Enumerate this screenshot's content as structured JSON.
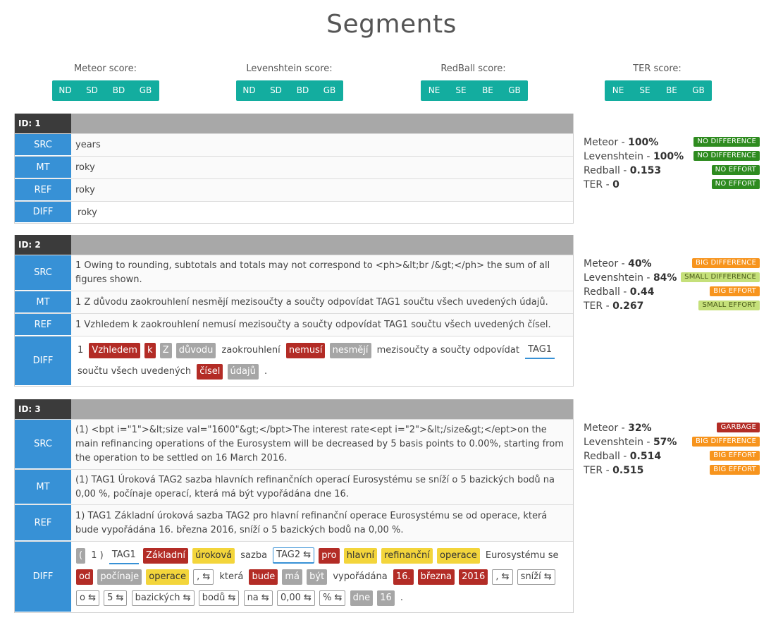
{
  "page": {
    "title": "Segments"
  },
  "filters": [
    {
      "label": "Meteor score:",
      "buttons": [
        "ND",
        "SD",
        "BD",
        "GB"
      ]
    },
    {
      "label": "Levenshtein score:",
      "buttons": [
        "ND",
        "SD",
        "BD",
        "GB"
      ]
    },
    {
      "label": "RedBall score:",
      "buttons": [
        "NE",
        "SE",
        "BE",
        "GB"
      ]
    },
    {
      "label": "TER score:",
      "buttons": [
        "NE",
        "SE",
        "BE",
        "GB"
      ]
    }
  ],
  "row_labels": {
    "src": "SRC",
    "mt": "MT",
    "ref": "REF",
    "diff": "DIFF"
  },
  "segments": [
    {
      "id": "ID: 1",
      "src": "years",
      "mt": "roky",
      "ref": "roky",
      "diff": [
        {
          "t": "roky",
          "k": "plain"
        }
      ],
      "scores": [
        {
          "name": "Meteor - ",
          "value": "100%",
          "badge": "NO DIFFERENCE",
          "color": "#2e8b1f"
        },
        {
          "name": "Levenshtein - ",
          "value": "100%",
          "badge": "NO DIFFERENCE",
          "color": "#2e8b1f"
        },
        {
          "name": "Redball - ",
          "value": "0.153",
          "badge": "NO EFFORT",
          "color": "#2e8b1f"
        },
        {
          "name": "TER - ",
          "value": "0",
          "badge": "NO EFFORT",
          "color": "#2e8b1f"
        }
      ]
    },
    {
      "id": "ID: 2",
      "src": "1 Owing to rounding, subtotals and totals may not correspond to <ph>&lt;br /&gt;</ph> the sum of all figures shown.",
      "mt": "1 Z důvodu zaokrouhlení nesmějí mezisoučty a součty odpovídat TAG1 součtu všech uvedených údajů.",
      "ref": "1 Vzhledem k zaokrouhlení nemusí mezisoučty a součty odpovídat TAG1 součtu všech uvedených čísel.",
      "diff": [
        {
          "t": "1",
          "k": "plain"
        },
        {
          "t": "Vzhledem",
          "k": "red"
        },
        {
          "t": "k",
          "k": "red"
        },
        {
          "t": "Z",
          "k": "grey"
        },
        {
          "t": "důvodu",
          "k": "grey"
        },
        {
          "t": "zaokrouhlení",
          "k": "plain"
        },
        {
          "t": "nemusí",
          "k": "red"
        },
        {
          "t": "nesmějí",
          "k": "grey"
        },
        {
          "t": "mezisoučty a součty odpovídat",
          "k": "plain"
        },
        {
          "t": "TAG1",
          "k": "under"
        },
        {
          "t": "součtu všech uvedených",
          "k": "plain"
        },
        {
          "t": "čísel",
          "k": "red"
        },
        {
          "t": "údajů",
          "k": "grey"
        },
        {
          "t": ".",
          "k": "plain"
        }
      ],
      "scores": [
        {
          "name": "Meteor - ",
          "value": "40%",
          "badge": "BIG DIFFERENCE",
          "color": "#f7941d"
        },
        {
          "name": "Levenshtein - ",
          "value": "84%",
          "badge": "SMALL DIFFERENCE",
          "color": "#c5e07a"
        },
        {
          "name": "Redball - ",
          "value": "0.44",
          "badge": "BIG EFFORT",
          "color": "#f7941d"
        },
        {
          "name": "TER - ",
          "value": "0.267",
          "badge": "SMALL EFFORT",
          "color": "#c5e07a"
        }
      ]
    },
    {
      "id": "ID: 3",
      "src": "(1) <bpt i=\"1\">&lt;size val=\"1600\"&gt;</bpt>The interest rate<ept i=\"2\">&lt;/size&gt;</ept>on the main refinancing operations of the Eurosystem will be decreased by 5 basis points to 0.00%, starting from the operation to be settled on 16 March 2016.",
      "mt": "(1) TAG1 Úroková TAG2 sazba hlavních refinančních operací Eurosystému se sníží o 5 bazických bodů na 0,00 %, počínaje operací, která má být vypořádána dne 16.",
      "ref": "1) TAG1 Základní úroková sazba TAG2 pro hlavní refinanční operace Eurosystému se od operace, která bude vypořádána 16. března 2016, sníží o 5 bazických bodů na 0,00 %.",
      "diff": [
        {
          "t": "(",
          "k": "grey"
        },
        {
          "t": "1 )",
          "k": "plain"
        },
        {
          "t": "TAG1",
          "k": "under"
        },
        {
          "t": "Základní",
          "k": "red"
        },
        {
          "t": "úroková",
          "k": "yellow"
        },
        {
          "t": "sazba",
          "k": "plain"
        },
        {
          "t": "TAG2 ⇆",
          "k": "boxblue"
        },
        {
          "t": "pro",
          "k": "red"
        },
        {
          "t": "hlavní",
          "k": "yellow"
        },
        {
          "t": "refinanční",
          "k": "yellow"
        },
        {
          "t": "operace",
          "k": "yellow"
        },
        {
          "t": "Eurosystému se",
          "k": "plain"
        },
        {
          "t": "od",
          "k": "red"
        },
        {
          "t": "počínaje",
          "k": "grey"
        },
        {
          "t": "operace",
          "k": "yellow"
        },
        {
          "t": ", ⇆",
          "k": "box"
        },
        {
          "t": "která",
          "k": "plain"
        },
        {
          "t": "bude",
          "k": "red"
        },
        {
          "t": "má",
          "k": "grey"
        },
        {
          "t": "být",
          "k": "grey"
        },
        {
          "t": "vypořádána",
          "k": "plain"
        },
        {
          "t": "16.",
          "k": "red"
        },
        {
          "t": "března",
          "k": "red"
        },
        {
          "t": "2016",
          "k": "red"
        },
        {
          "t": ", ⇆",
          "k": "box"
        },
        {
          "t": "sníží ⇆",
          "k": "box"
        },
        {
          "t": "o ⇆",
          "k": "box"
        },
        {
          "t": "5 ⇆",
          "k": "box"
        },
        {
          "t": "bazických ⇆",
          "k": "box"
        },
        {
          "t": "bodů ⇆",
          "k": "box"
        },
        {
          "t": "na ⇆",
          "k": "box"
        },
        {
          "t": "0,00 ⇆",
          "k": "box"
        },
        {
          "t": "% ⇆",
          "k": "box"
        },
        {
          "t": "dne",
          "k": "grey"
        },
        {
          "t": "16",
          "k": "grey"
        },
        {
          "t": ".",
          "k": "plain"
        }
      ],
      "scores": [
        {
          "name": "Meteor - ",
          "value": "32%",
          "badge": "GARBAGE",
          "color": "#b32c26"
        },
        {
          "name": "Levenshtein - ",
          "value": "57%",
          "badge": "BIG DIFFERENCE",
          "color": "#f7941d"
        },
        {
          "name": "Redball - ",
          "value": "0.514",
          "badge": "BIG EFFORT",
          "color": "#f7941d"
        },
        {
          "name": "TER - ",
          "value": "0.515",
          "badge": "BIG EFFORT",
          "color": "#f7941d"
        }
      ]
    }
  ]
}
